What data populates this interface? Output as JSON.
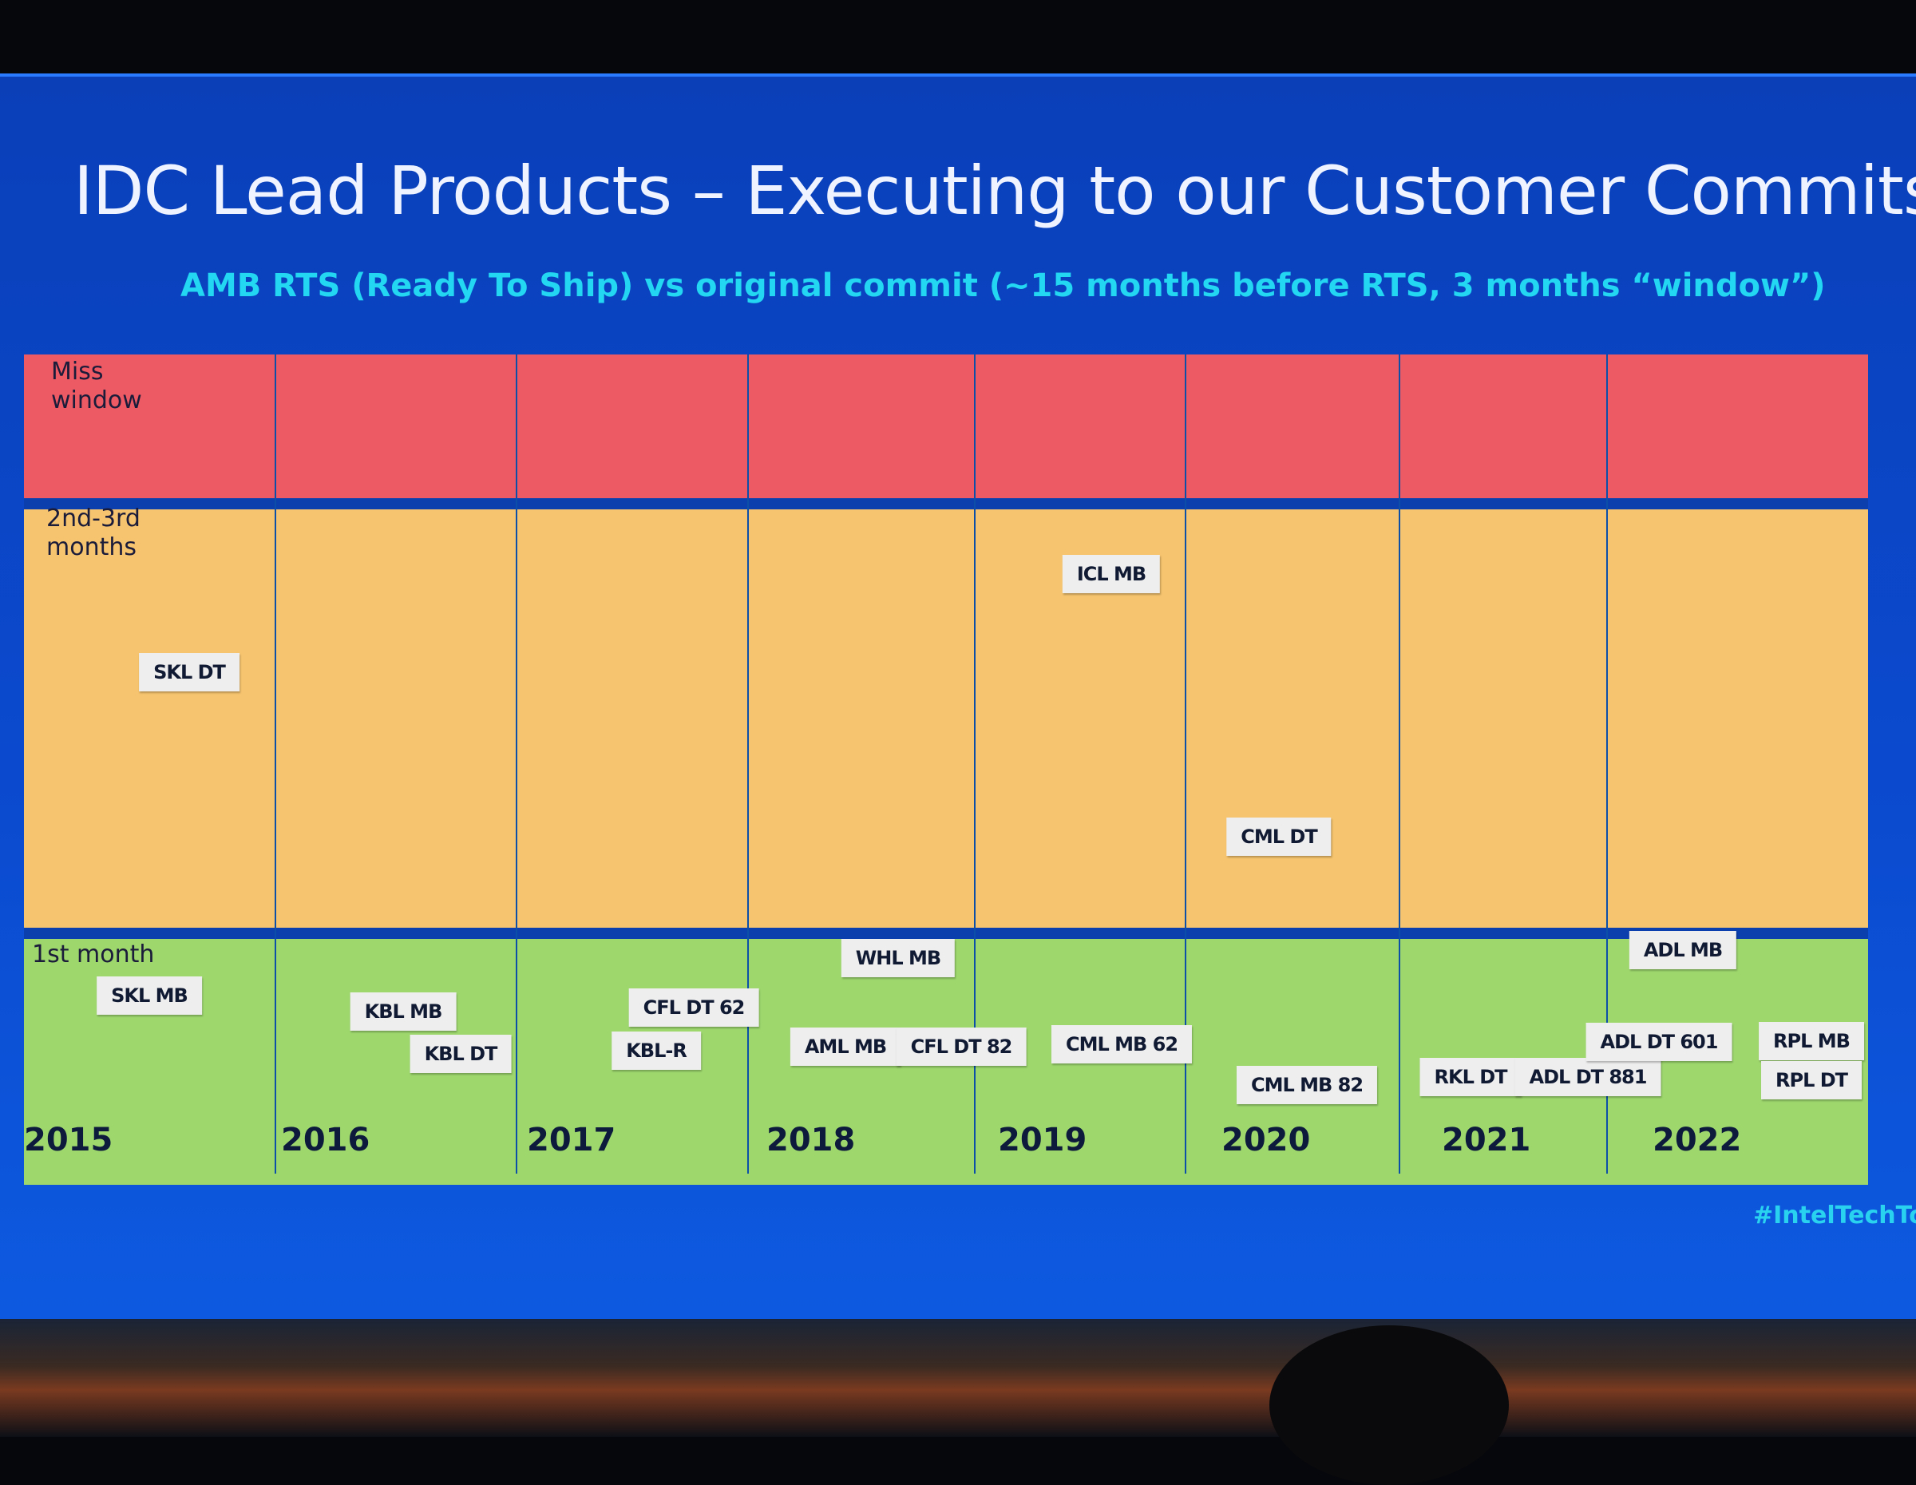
{
  "slide": {
    "title": "IDC Lead Products – Executing to our Customer Commits",
    "subtitle": "AMB RTS (Ready To Ship) vs original commit (~15 months before RTS, 3 months “window”)",
    "hashtag": "#IntelTechTour"
  },
  "bands": [
    {
      "label": "Miss window",
      "color": "#ee5a64"
    },
    {
      "label": "2nd-3rd months",
      "color": "#f6c46e"
    },
    {
      "label": "1st month",
      "color": "#9ed86d"
    }
  ],
  "years": [
    "2015",
    "2016",
    "2017",
    "2018",
    "2019",
    "2020",
    "2021",
    "2022"
  ],
  "products": [
    {
      "name": "SKL DT",
      "year": "2015",
      "band": "2nd-3rd months"
    },
    {
      "name": "ICL MB",
      "year": "2019",
      "band": "2nd-3rd months"
    },
    {
      "name": "CML DT",
      "year": "2020",
      "band": "2nd-3rd months"
    },
    {
      "name": "SKL MB",
      "year": "2015",
      "band": "1st month"
    },
    {
      "name": "KBL MB",
      "year": "2016",
      "band": "1st month"
    },
    {
      "name": "KBL DT",
      "year": "2016",
      "band": "1st month"
    },
    {
      "name": "CFL DT 62",
      "year": "2017",
      "band": "1st month"
    },
    {
      "name": "KBL-R",
      "year": "2017",
      "band": "1st month"
    },
    {
      "name": "WHL MB",
      "year": "2018",
      "band": "1st month"
    },
    {
      "name": "AML MB",
      "year": "2018",
      "band": "1st month"
    },
    {
      "name": "CFL DT 82",
      "year": "2018",
      "band": "1st month"
    },
    {
      "name": "CML MB 62",
      "year": "2019",
      "band": "1st month"
    },
    {
      "name": "CML MB 82",
      "year": "2020",
      "band": "1st month"
    },
    {
      "name": "RKL DT",
      "year": "2021",
      "band": "1st month"
    },
    {
      "name": "ADL DT 881",
      "year": "2021",
      "band": "1st month"
    },
    {
      "name": "ADL DT 601",
      "year": "2022",
      "band": "1st month"
    },
    {
      "name": "ADL MB",
      "year": "2022",
      "band": "1st month"
    },
    {
      "name": "RPL MB",
      "year": "2022",
      "band": "1st month"
    },
    {
      "name": "RPL DT",
      "year": "2022",
      "band": "1st month"
    }
  ]
}
